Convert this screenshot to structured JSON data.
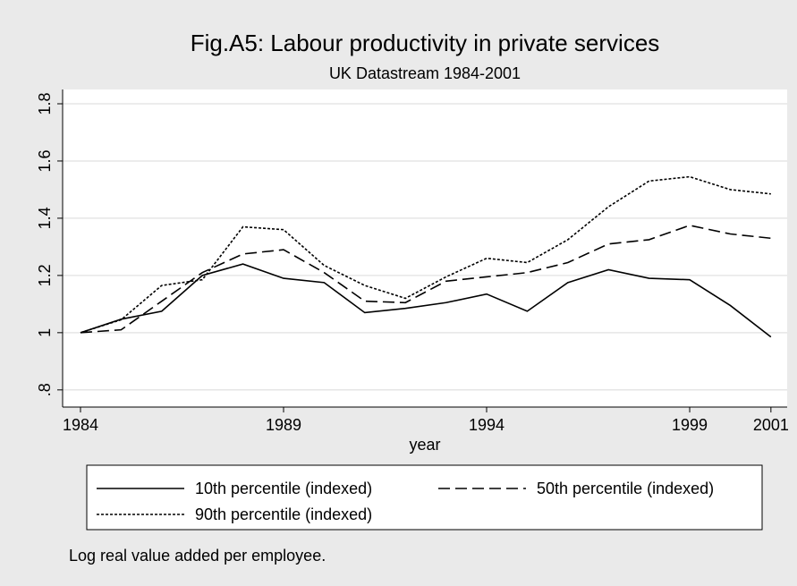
{
  "chart_data": {
    "type": "line",
    "title": "Fig.A5: Labour productivity in private services",
    "subtitle": "UK Datastream 1984-2001",
    "x_label": "year",
    "note": "Log real value added per employee.",
    "x": [
      1984,
      1985,
      1986,
      1987,
      1988,
      1989,
      1990,
      1991,
      1992,
      1993,
      1994,
      1995,
      1996,
      1997,
      1998,
      1999,
      2000,
      2001
    ],
    "series": [
      {
        "name": "10th percentile (indexed)",
        "color": "#000000",
        "dash": "solid",
        "values": [
          1.0,
          1.047,
          1.075,
          1.2,
          1.24,
          1.19,
          1.175,
          1.07,
          1.085,
          1.105,
          1.135,
          1.075,
          1.175,
          1.22,
          1.19,
          1.185,
          1.095,
          0.985
        ]
      },
      {
        "name": "50th percentile (indexed)",
        "color": "#000000",
        "dash": "dashed",
        "values": [
          1.0,
          1.01,
          1.11,
          1.21,
          1.275,
          1.29,
          1.21,
          1.11,
          1.105,
          1.18,
          1.195,
          1.21,
          1.245,
          1.31,
          1.325,
          1.375,
          1.345,
          1.33
        ]
      },
      {
        "name": "90th percentile (indexed)",
        "color": "#000000",
        "dash": "dotted",
        "values": [
          1.0,
          1.045,
          1.165,
          1.185,
          1.37,
          1.36,
          1.235,
          1.165,
          1.12,
          1.195,
          1.26,
          1.245,
          1.325,
          1.44,
          1.53,
          1.545,
          1.5,
          1.485
        ]
      }
    ],
    "xlim": [
      1983.56,
      2001.4
    ],
    "xticks": [
      1984,
      1989,
      1994,
      1999,
      2001
    ],
    "ylim": [
      0.74,
      1.85
    ],
    "yticks": [
      {
        "value": 0.8,
        "label": ".8"
      },
      1,
      1.2,
      1.4,
      1.6,
      1.8
    ],
    "grid": true,
    "legend": "bottom"
  }
}
